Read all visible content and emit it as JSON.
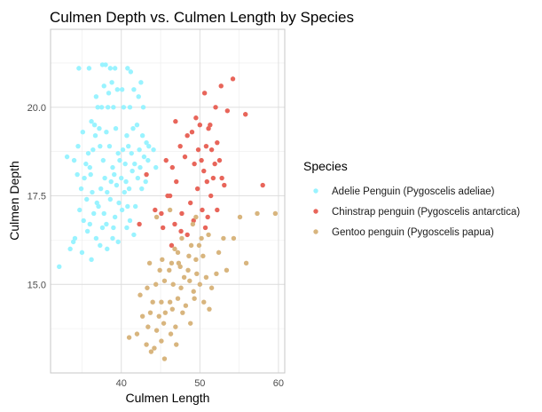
{
  "chart_data": {
    "type": "scatter",
    "title": "Culmen Depth vs. Culmen Length by Species",
    "xlabel": "Culmen Length",
    "ylabel": "Culmen Depth",
    "xlim": [
      31.0,
      60.8
    ],
    "ylim": [
      12.5,
      22.2
    ],
    "x_ticks": [
      40,
      50,
      60
    ],
    "x_tick_labels": [
      "40",
      "50",
      "60"
    ],
    "y_ticks": [
      15.0,
      17.5,
      20.0
    ],
    "y_tick_labels": [
      "15.0",
      "17.5",
      "20.0"
    ],
    "grid": true,
    "legend": {
      "title": "Species",
      "position": "right",
      "entries": [
        "Adelie Penguin (Pygoscelis adeliae)",
        "Chinstrap penguin (Pygoscelis antarctica)",
        "Gentoo penguin (Pygoscelis papua)"
      ]
    },
    "series": [
      {
        "name": "Adelie Penguin (Pygoscelis adeliae)",
        "color": "#99F3FF",
        "points": [
          [
            34.6,
            21.1
          ],
          [
            35.9,
            21.1
          ],
          [
            37.6,
            21.2
          ],
          [
            38.0,
            21.2
          ],
          [
            38.6,
            21.1
          ],
          [
            39.2,
            21.1
          ],
          [
            40.8,
            21.1
          ],
          [
            41.2,
            21.0
          ],
          [
            41.6,
            20.5
          ],
          [
            42.2,
            20.3
          ],
          [
            42.5,
            20.7
          ],
          [
            38.8,
            20.7
          ],
          [
            37.8,
            20.6
          ],
          [
            39.5,
            20.5
          ],
          [
            38.4,
            20.4
          ],
          [
            40.1,
            20.5
          ],
          [
            36.8,
            20.3
          ],
          [
            37.0,
            20.0
          ],
          [
            37.5,
            20.0
          ],
          [
            38.3,
            20.0
          ],
          [
            39.0,
            20.0
          ],
          [
            40.3,
            20.0
          ],
          [
            41.1,
            20.0
          ],
          [
            42.8,
            20.0
          ],
          [
            36.2,
            19.6
          ],
          [
            36.6,
            19.5
          ],
          [
            37.2,
            19.4
          ],
          [
            35.1,
            19.3
          ],
          [
            36.7,
            19.2
          ],
          [
            38.1,
            19.3
          ],
          [
            39.3,
            19.4
          ],
          [
            40.7,
            19.2
          ],
          [
            41.5,
            19.4
          ],
          [
            42.0,
            19.5
          ],
          [
            42.7,
            19.2
          ],
          [
            43.2,
            19.0
          ],
          [
            34.5,
            18.9
          ],
          [
            35.8,
            18.7
          ],
          [
            36.4,
            18.8
          ],
          [
            37.3,
            18.9
          ],
          [
            38.5,
            18.9
          ],
          [
            39.6,
            18.7
          ],
          [
            40.2,
            18.8
          ],
          [
            40.9,
            18.9
          ],
          [
            41.3,
            18.7
          ],
          [
            42.3,
            18.8
          ],
          [
            42.9,
            18.6
          ],
          [
            43.5,
            18.9
          ],
          [
            44.1,
            18.8
          ],
          [
            33.1,
            18.6
          ],
          [
            34.0,
            18.5
          ],
          [
            35.5,
            18.4
          ],
          [
            36.0,
            18.3
          ],
          [
            37.7,
            18.5
          ],
          [
            38.9,
            18.3
          ],
          [
            39.8,
            18.5
          ],
          [
            40.5,
            18.4
          ],
          [
            41.7,
            18.4
          ],
          [
            42.4,
            18.3
          ],
          [
            43.4,
            18.5
          ],
          [
            44.4,
            18.3
          ],
          [
            34.4,
            18.1
          ],
          [
            35.3,
            18.0
          ],
          [
            36.1,
            18.1
          ],
          [
            37.9,
            18.0
          ],
          [
            38.7,
            17.9
          ],
          [
            39.1,
            18.1
          ],
          [
            40.0,
            18.0
          ],
          [
            40.6,
            17.9
          ],
          [
            41.4,
            18.2
          ],
          [
            42.1,
            18.0
          ],
          [
            43.1,
            17.9
          ],
          [
            34.9,
            17.7
          ],
          [
            36.3,
            17.6
          ],
          [
            37.4,
            17.7
          ],
          [
            38.2,
            17.6
          ],
          [
            39.4,
            17.8
          ],
          [
            40.4,
            17.6
          ],
          [
            41.0,
            17.7
          ],
          [
            42.6,
            17.7
          ],
          [
            35.6,
            17.4
          ],
          [
            36.9,
            17.3
          ],
          [
            37.1,
            17.2
          ],
          [
            38.6,
            17.4
          ],
          [
            39.7,
            17.3
          ],
          [
            40.8,
            17.2
          ],
          [
            41.8,
            17.2
          ],
          [
            34.7,
            17.1
          ],
          [
            36.5,
            17.0
          ],
          [
            37.8,
            17.0
          ],
          [
            39.2,
            16.9
          ],
          [
            40.1,
            17.1
          ],
          [
            41.1,
            16.8
          ],
          [
            35.2,
            16.8
          ],
          [
            36.0,
            16.7
          ],
          [
            37.6,
            16.6
          ],
          [
            38.1,
            16.7
          ],
          [
            39.0,
            16.6
          ],
          [
            40.7,
            16.6
          ],
          [
            34.1,
            16.3
          ],
          [
            35.7,
            16.5
          ],
          [
            36.8,
            16.3
          ],
          [
            38.9,
            16.3
          ],
          [
            39.6,
            16.2
          ],
          [
            41.6,
            16.4
          ],
          [
            33.5,
            16.0
          ],
          [
            35.0,
            15.9
          ],
          [
            37.3,
            16.1
          ],
          [
            38.2,
            16.0
          ],
          [
            36.2,
            15.7
          ],
          [
            32.1,
            15.5
          ],
          [
            33.9,
            16.2
          ]
        ]
      },
      {
        "name": "Chinstrap penguin (Pygoscelis antarctica)",
        "color": "#E8655A",
        "points": [
          [
            54.2,
            20.8
          ],
          [
            52.7,
            20.6
          ],
          [
            50.6,
            20.4
          ],
          [
            52.0,
            20.0
          ],
          [
            49.5,
            19.7
          ],
          [
            51.3,
            19.5
          ],
          [
            53.5,
            19.9
          ],
          [
            46.9,
            19.6
          ],
          [
            50.0,
            19.5
          ],
          [
            48.4,
            19.2
          ],
          [
            51.1,
            19.4
          ],
          [
            49.0,
            19.3
          ],
          [
            52.2,
            19.0
          ],
          [
            55.8,
            19.8
          ],
          [
            47.5,
            18.9
          ],
          [
            49.8,
            18.8
          ],
          [
            50.8,
            18.9
          ],
          [
            51.5,
            18.8
          ],
          [
            52.5,
            18.5
          ],
          [
            50.2,
            18.5
          ],
          [
            48.1,
            18.6
          ],
          [
            51.9,
            18.4
          ],
          [
            46.5,
            18.3
          ],
          [
            49.3,
            18.4
          ],
          [
            52.8,
            18.0
          ],
          [
            50.5,
            18.2
          ],
          [
            51.7,
            18.0
          ],
          [
            45.7,
            18.5
          ],
          [
            47.0,
            17.9
          ],
          [
            50.9,
            17.9
          ],
          [
            43.2,
            18.1
          ],
          [
            45.9,
            17.5
          ],
          [
            49.7,
            17.7
          ],
          [
            53.1,
            17.8
          ],
          [
            58.0,
            17.8
          ],
          [
            46.2,
            17.5
          ],
          [
            48.8,
            17.3
          ],
          [
            51.4,
            17.5
          ],
          [
            44.3,
            17.1
          ],
          [
            47.7,
            17.0
          ],
          [
            50.3,
            17.1
          ],
          [
            52.2,
            17.1
          ],
          [
            46.8,
            16.7
          ],
          [
            49.2,
            16.8
          ],
          [
            42.3,
            16.7
          ],
          [
            45.3,
            16.6
          ],
          [
            45.1,
            17.0
          ],
          [
            47.6,
            16.5
          ],
          [
            50.7,
            16.6
          ],
          [
            46.4,
            16.1
          ],
          [
            48.4,
            16.4
          ],
          [
            51.0,
            16.9
          ]
        ]
      },
      {
        "name": "Gentoo penguin (Pygoscelis papua)",
        "color": "#D8B57E",
        "points": [
          [
            59.6,
            17.0
          ],
          [
            57.3,
            17.0
          ],
          [
            55.1,
            16.9
          ],
          [
            49.1,
            16.7
          ],
          [
            47.7,
            16.3
          ],
          [
            48.9,
            16.1
          ],
          [
            49.9,
            16.1
          ],
          [
            50.2,
            16.3
          ],
          [
            51.1,
            16.4
          ],
          [
            53.0,
            16.3
          ],
          [
            54.3,
            16.3
          ],
          [
            52.4,
            15.9
          ],
          [
            50.4,
            15.8
          ],
          [
            49.5,
            15.7
          ],
          [
            48.6,
            15.8
          ],
          [
            47.3,
            15.6
          ],
          [
            46.4,
            15.6
          ],
          [
            45.2,
            15.7
          ],
          [
            43.6,
            15.6
          ],
          [
            44.9,
            15.4
          ],
          [
            46.1,
            15.4
          ],
          [
            47.5,
            15.5
          ],
          [
            48.5,
            15.4
          ],
          [
            49.6,
            15.3
          ],
          [
            50.8,
            15.2
          ],
          [
            52.1,
            15.3
          ],
          [
            53.4,
            15.4
          ],
          [
            55.9,
            15.6
          ],
          [
            51.5,
            14.9
          ],
          [
            50.0,
            15.0
          ],
          [
            48.7,
            15.1
          ],
          [
            47.6,
            14.9
          ],
          [
            46.6,
            15.0
          ],
          [
            45.5,
            15.1
          ],
          [
            44.4,
            15.0
          ],
          [
            43.3,
            14.9
          ],
          [
            42.4,
            14.7
          ],
          [
            44.0,
            14.5
          ],
          [
            45.1,
            14.5
          ],
          [
            46.2,
            14.5
          ],
          [
            47.2,
            14.6
          ],
          [
            48.2,
            14.4
          ],
          [
            49.3,
            14.6
          ],
          [
            50.5,
            14.5
          ],
          [
            51.2,
            14.3
          ],
          [
            46.5,
            14.3
          ],
          [
            45.6,
            14.2
          ],
          [
            44.8,
            14.1
          ],
          [
            43.7,
            14.2
          ],
          [
            42.7,
            14.1
          ],
          [
            47.8,
            14.2
          ],
          [
            48.8,
            13.9
          ],
          [
            46.9,
            13.8
          ],
          [
            45.4,
            13.9
          ],
          [
            44.5,
            13.7
          ],
          [
            43.4,
            13.8
          ],
          [
            42.0,
            13.6
          ],
          [
            41.0,
            13.5
          ],
          [
            43.2,
            13.3
          ],
          [
            45.1,
            13.4
          ],
          [
            46.3,
            13.6
          ],
          [
            44.2,
            13.2
          ],
          [
            47.0,
            13.3
          ],
          [
            43.8,
            13.1
          ],
          [
            45.5,
            12.9
          ],
          [
            49.2,
            14.8
          ],
          [
            48.0,
            15.2
          ],
          [
            47.2,
            15.9
          ],
          [
            46.8,
            16.0
          ],
          [
            44.5,
            16.9
          ],
          [
            46.2,
            17.1
          ],
          [
            49.5,
            16.9
          ]
        ]
      }
    ]
  }
}
